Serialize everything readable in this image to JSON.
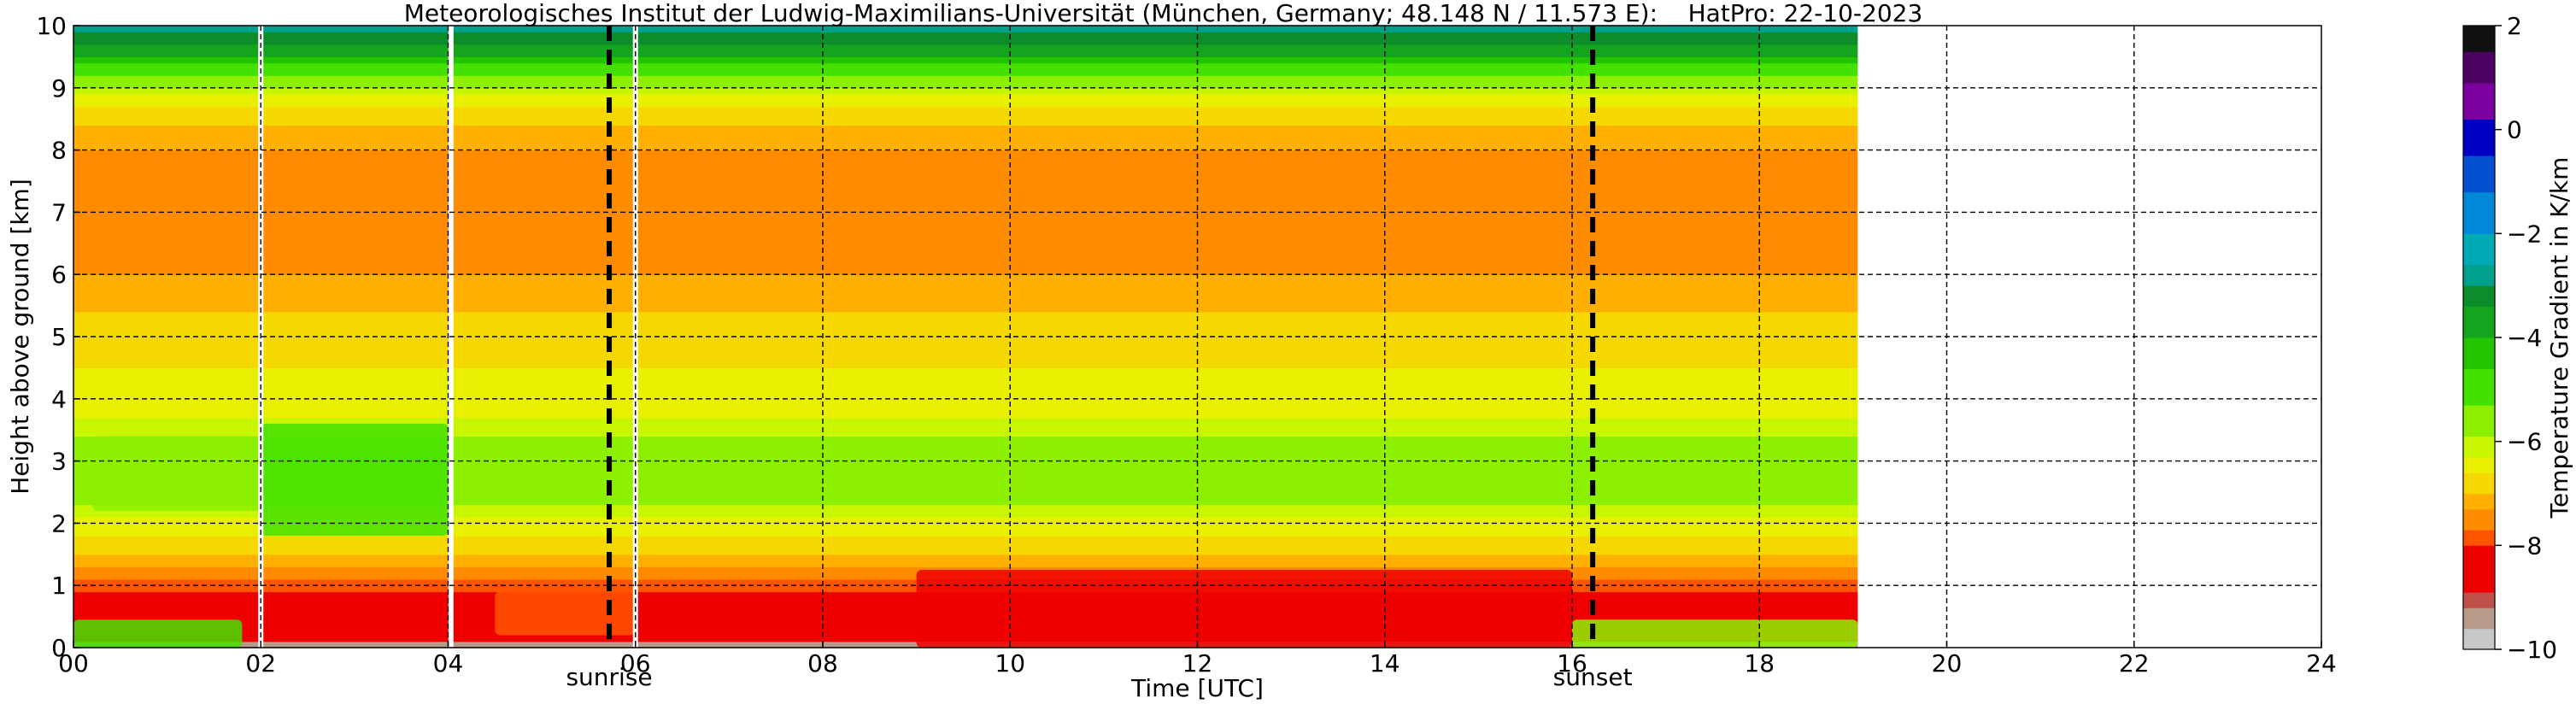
{
  "chart_data": {
    "type": "heatmap",
    "title": "Meteorologisches Institut der Ludwig-Maximilians-Universität (München, Germany; 48.148 N / 11.573 E):    HatPro: 22-10-2023",
    "xlabel": "Time [UTC]",
    "ylabel": "Height above ground [km]",
    "xlim": [
      0,
      24
    ],
    "ylim": [
      0,
      10
    ],
    "x_ticks": [
      "00",
      "02",
      "04",
      "06",
      "08",
      "10",
      "12",
      "14",
      "16",
      "18",
      "20",
      "22",
      "24"
    ],
    "y_ticks": [
      "0",
      "1",
      "2",
      "3",
      "4",
      "5",
      "6",
      "7",
      "8",
      "9",
      "10"
    ],
    "grid": true,
    "data_time_range": [
      0,
      19.05
    ],
    "data_gaps_utc": [
      2.0,
      4.03,
      6.0
    ],
    "sunrise_utc": 5.72,
    "sunset_utc": 16.22,
    "events": [
      {
        "label": "sunrise",
        "x": 5.72
      },
      {
        "label": "sunset",
        "x": 16.22
      }
    ],
    "colorbar": {
      "label": "Temperature Gradient in K/km",
      "range": [
        -10,
        2
      ],
      "tick_labels": [
        "2",
        "0",
        "−2",
        "−4",
        "−6",
        "−8",
        "−10"
      ],
      "colors": [
        {
          "from": -10.0,
          "to": -9.6,
          "color": "#c8c8c8"
        },
        {
          "from": -9.6,
          "to": -9.2,
          "color": "#b89a8a"
        },
        {
          "from": -9.2,
          "to": -8.9,
          "color": "#c0504a"
        },
        {
          "from": -8.9,
          "to": -8.0,
          "color": "#ee0000"
        },
        {
          "from": -8.0,
          "to": -7.7,
          "color": "#ff5500"
        },
        {
          "from": -7.7,
          "to": -7.3,
          "color": "#ff8c00"
        },
        {
          "from": -7.3,
          "to": -7.0,
          "color": "#ffb000"
        },
        {
          "from": -7.0,
          "to": -6.6,
          "color": "#f5d800"
        },
        {
          "from": -6.6,
          "to": -6.3,
          "color": "#e8f000"
        },
        {
          "from": -6.3,
          "to": -5.9,
          "color": "#c8f500"
        },
        {
          "from": -5.9,
          "to": -5.3,
          "color": "#8cf000"
        },
        {
          "from": -5.3,
          "to": -4.6,
          "color": "#44e000"
        },
        {
          "from": -4.6,
          "to": -4.0,
          "color": "#22c400"
        },
        {
          "from": -4.0,
          "to": -3.4,
          "color": "#14a41e"
        },
        {
          "from": -3.4,
          "to": -3.0,
          "color": "#0c8c2a"
        },
        {
          "from": -3.0,
          "to": -2.6,
          "color": "#00a08c"
        },
        {
          "from": -2.6,
          "to": -2.0,
          "color": "#00aab4"
        },
        {
          "from": -2.0,
          "to": -1.2,
          "color": "#0088d8"
        },
        {
          "from": -1.2,
          "to": -0.5,
          "color": "#0050d0"
        },
        {
          "from": -0.5,
          "to": 0.2,
          "color": "#0000c4"
        },
        {
          "from": 0.2,
          "to": 0.9,
          "color": "#7a00a0"
        },
        {
          "from": 0.9,
          "to": 1.5,
          "color": "#4c0060"
        },
        {
          "from": 1.5,
          "to": 2.0,
          "color": "#101010"
        }
      ]
    },
    "vertical_profile": [
      {
        "h": 0.0,
        "v": -9.5
      },
      {
        "h": 0.1,
        "v": -9.0
      },
      {
        "h": 0.3,
        "v": -8.6
      },
      {
        "h": 0.6,
        "v": -8.4
      },
      {
        "h": 0.9,
        "v": -8.1
      },
      {
        "h": 1.1,
        "v": -7.6
      },
      {
        "h": 1.4,
        "v": -7.1
      },
      {
        "h": 1.7,
        "v": -6.8
      },
      {
        "h": 2.0,
        "v": -6.4
      },
      {
        "h": 2.4,
        "v": -5.8
      },
      {
        "h": 2.9,
        "v": -5.3
      },
      {
        "h": 3.2,
        "v": -5.6
      },
      {
        "h": 3.6,
        "v": -6.2
      },
      {
        "h": 4.0,
        "v": -6.5
      },
      {
        "h": 4.5,
        "v": -6.6
      },
      {
        "h": 5.0,
        "v": -6.8
      },
      {
        "h": 5.6,
        "v": -7.1
      },
      {
        "h": 6.2,
        "v": -7.4
      },
      {
        "h": 6.8,
        "v": -7.5
      },
      {
        "h": 7.4,
        "v": -7.5
      },
      {
        "h": 8.0,
        "v": -7.3
      },
      {
        "h": 8.4,
        "v": -7.0
      },
      {
        "h": 8.7,
        "v": -6.6
      },
      {
        "h": 9.0,
        "v": -6.0
      },
      {
        "h": 9.2,
        "v": -5.2
      },
      {
        "h": 9.4,
        "v": -4.4
      },
      {
        "h": 9.6,
        "v": -3.8
      },
      {
        "h": 9.8,
        "v": -3.2
      },
      {
        "h": 10.0,
        "v": -2.4
      }
    ],
    "anomalies": [
      {
        "t0": 0.0,
        "t1": 1.8,
        "h0": 0.0,
        "h1": 0.45,
        "v": -5.2
      },
      {
        "t0": 0.2,
        "t1": 2.0,
        "h0": 2.2,
        "h1": 3.4,
        "v": -5.4
      },
      {
        "t0": 2.0,
        "t1": 4.0,
        "h0": 1.8,
        "h1": 3.6,
        "v": -5.0
      },
      {
        "t0": 2.3,
        "t1": 3.1,
        "h0": 0.15,
        "h1": 0.8,
        "v": -8.3
      },
      {
        "t0": 4.5,
        "t1": 6.0,
        "h0": 0.2,
        "h1": 0.9,
        "v": -7.9
      },
      {
        "t0": 9.0,
        "t1": 16.0,
        "h0": 0.0,
        "h1": 1.25,
        "v": -8.7
      },
      {
        "t0": 16.0,
        "t1": 19.05,
        "h0": 0.0,
        "h1": 0.45,
        "v": -5.6
      }
    ]
  }
}
